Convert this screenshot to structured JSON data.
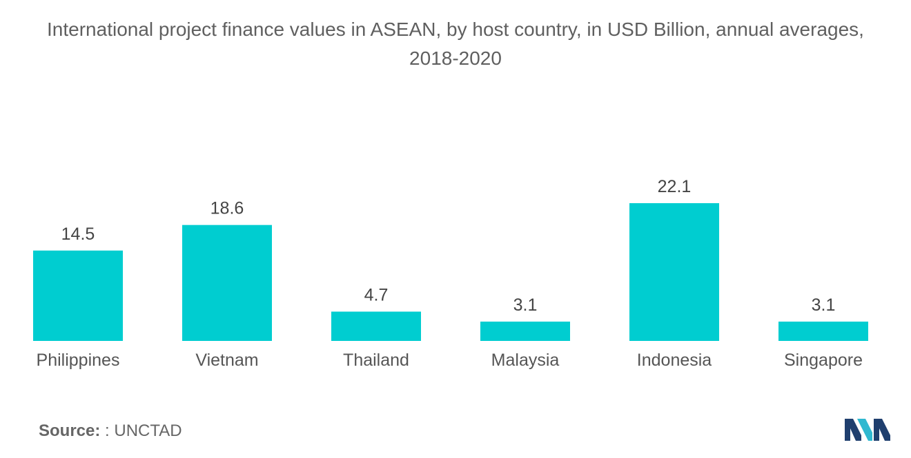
{
  "chart_data": {
    "type": "bar",
    "title": "International project finance values in ASEAN, by host country, in USD Billion, annual averages, 2018-2020",
    "categories": [
      "Philippines",
      "Vietnam",
      "Thailand",
      "Malaysia",
      "Indonesia",
      "Singapore"
    ],
    "values": [
      14.5,
      18.6,
      4.7,
      3.1,
      22.1,
      3.1
    ],
    "value_labels": [
      "14.5",
      "18.6",
      "4.7",
      "3.1",
      "22.1",
      "3.1"
    ],
    "xlabel": "",
    "ylabel": "",
    "ylim": [
      0,
      22.1
    ],
    "grid": false,
    "legend": "none",
    "bar_color": "#00CDD0"
  },
  "source": {
    "label": "Source:",
    "value": ": UNCTAD"
  },
  "logo": {
    "icon": "mordor-intelligence-logo-icon",
    "colors": [
      "#1F3F6E",
      "#2FB8D0"
    ]
  }
}
